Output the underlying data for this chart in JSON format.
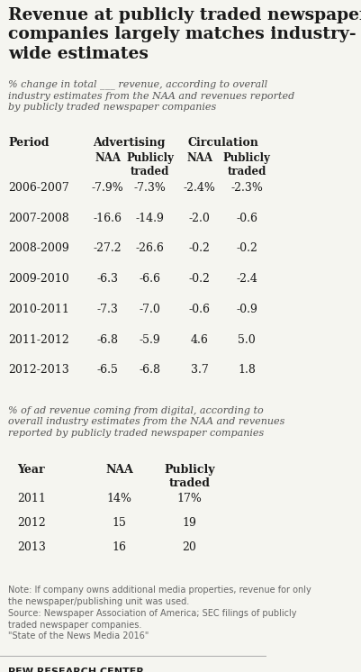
{
  "title": "Revenue at publicly traded newspaper\ncompanies largely matches industry-\nwide estimates",
  "subtitle1": "% change in total ___ revenue, according to overall\nindustry estimates from the NAA and revenues reported\nby publicly traded newspaper companies",
  "table1_periods": [
    "2006-2007",
    "2007-2008",
    "2008-2009",
    "2009-2010",
    "2010-2011",
    "2011-2012",
    "2012-2013"
  ],
  "table1_adv_naa": [
    "-7.9%",
    "-16.6",
    "-27.2",
    "-6.3",
    "-7.3",
    "-6.8",
    "-6.5"
  ],
  "table1_adv_pub": [
    "-7.3%",
    "-14.9",
    "-26.6",
    "-6.6",
    "-7.0",
    "-5.9",
    "-6.8"
  ],
  "table1_circ_naa": [
    "-2.4%",
    "-2.0",
    "-0.2",
    "-0.2",
    "-0.6",
    "4.6",
    "3.7"
  ],
  "table1_circ_pub": [
    "-2.3%",
    "-0.6",
    "-0.2",
    "-2.4",
    "-0.9",
    "5.0",
    "1.8"
  ],
  "subtitle2": "% of ad revenue coming from digital, according to\noverall industry estimates from the NAA and revenues\nreported by publicly traded newspaper companies",
  "table2_years": [
    "2011",
    "2012",
    "2013"
  ],
  "table2_naa": [
    "14%",
    "15",
    "16"
  ],
  "table2_pub": [
    "17%",
    "19",
    "20"
  ],
  "note": "Note: If company owns additional media properties, revenue for only\nthe newspaper/publishing unit was used.\nSource: Newspaper Association of America; SEC filings of publicly\ntraded newspaper companies.\n\"State of the News Media 2016\"",
  "footer": "PEW RESEARCH CENTER",
  "bg_color": "#f5f5f0",
  "title_color": "#1a1a1a",
  "data_color": "#1a1a1a",
  "header_color": "#1a1a1a",
  "note_color": "#666666",
  "footer_color": "#1a1a1a"
}
